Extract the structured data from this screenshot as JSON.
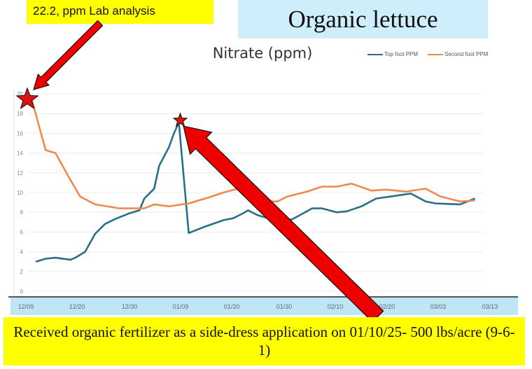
{
  "header": {
    "annotation_label": "22.2, ppm Lab analysis",
    "slide_title": "Organic lettuce"
  },
  "footer": {
    "note": "Received organic fertilizer as a side-dress application on 01/10/25- 500 lbs/acre (9-6-1)"
  },
  "colors": {
    "top_foot": "#2a6f8a",
    "second_foot": "#ee8a4e",
    "highlight_yellow": "#ffff00",
    "title_box": "#cdeefa",
    "axis_band": "#bfe6f5",
    "arrow": "#ee0000"
  },
  "chart_data": {
    "type": "line",
    "title": "Nitrate (ppm)",
    "xlabel": "",
    "ylabel": "",
    "ylim": [
      0,
      20
    ],
    "yticks": [
      0,
      2,
      4,
      6,
      8,
      10,
      12,
      14,
      16,
      18,
      20
    ],
    "xticks": [
      "12/09",
      "12/20",
      "12/30",
      "01/09",
      "01/20",
      "01/30",
      "02/10",
      "02/20",
      "03/03",
      "03/13"
    ],
    "grid": true,
    "legend_position": "top-right",
    "series": [
      {
        "name": "Top foot PPM",
        "color": "#2a6f8a",
        "points": [
          [
            "12/11",
            3.0
          ],
          [
            "12/13",
            3.3
          ],
          [
            "12/15",
            3.4
          ],
          [
            "12/18",
            3.2
          ],
          [
            "12/19",
            3.4
          ],
          [
            "12/21",
            4.0
          ],
          [
            "12/23",
            5.8
          ],
          [
            "12/25",
            6.8
          ],
          [
            "12/27",
            7.3
          ],
          [
            "12/30",
            7.9
          ],
          [
            "01/01",
            8.2
          ],
          [
            "01/02",
            9.4
          ],
          [
            "01/04",
            10.4
          ],
          [
            "01/05",
            12.7
          ],
          [
            "01/07",
            14.6
          ],
          [
            "01/08",
            16.0
          ],
          [
            "01/09",
            17.1
          ],
          [
            "01/11",
            5.9
          ],
          [
            "01/14",
            6.5
          ],
          [
            "01/18",
            7.2
          ],
          [
            "01/20",
            7.4
          ],
          [
            "01/22",
            7.9
          ],
          [
            "01/23",
            8.2
          ],
          [
            "01/25",
            7.7
          ],
          [
            "01/27",
            7.4
          ],
          [
            "01/28",
            7.0
          ],
          [
            "02/01",
            7.3
          ],
          [
            "02/05",
            8.4
          ],
          [
            "02/07",
            8.4
          ],
          [
            "02/10",
            8.0
          ],
          [
            "02/12",
            8.1
          ],
          [
            "02/15",
            8.6
          ],
          [
            "02/18",
            9.4
          ],
          [
            "02/21",
            9.6
          ],
          [
            "02/25",
            9.9
          ],
          [
            "02/28",
            9.1
          ],
          [
            "03/02",
            8.9
          ],
          [
            "03/07",
            8.8
          ],
          [
            "03/08",
            9.0
          ],
          [
            "03/10",
            9.4
          ]
        ]
      },
      {
        "name": "Second foot PPM",
        "color": "#ee8a4e",
        "points": [
          [
            "12/10",
            19.8
          ],
          [
            "12/13",
            14.3
          ],
          [
            "12/15",
            14.0
          ],
          [
            "12/18",
            11.3
          ],
          [
            "12/20",
            9.6
          ],
          [
            "12/23",
            8.8
          ],
          [
            "12/28",
            8.4
          ],
          [
            "01/02",
            8.4
          ],
          [
            "01/04",
            8.8
          ],
          [
            "01/07",
            8.6
          ],
          [
            "01/11",
            8.9
          ],
          [
            "01/15",
            9.5
          ],
          [
            "01/18",
            10.0
          ],
          [
            "01/21",
            10.4
          ],
          [
            "01/23",
            9.6
          ],
          [
            "01/26",
            9.1
          ],
          [
            "01/29",
            9.1
          ],
          [
            "01/31",
            9.6
          ],
          [
            "02/04",
            10.1
          ],
          [
            "02/07",
            10.6
          ],
          [
            "02/10",
            10.6
          ],
          [
            "02/13",
            10.9
          ],
          [
            "02/17",
            10.2
          ],
          [
            "02/20",
            10.3
          ],
          [
            "02/24",
            10.1
          ],
          [
            "02/28",
            10.4
          ],
          [
            "03/03",
            9.6
          ],
          [
            "03/07",
            9.1
          ],
          [
            "03/10",
            9.2
          ]
        ]
      }
    ],
    "annotations": [
      {
        "type": "star",
        "date": "12/10",
        "value": 19.8
      },
      {
        "type": "star",
        "date": "01/09",
        "value": 17.1
      }
    ]
  }
}
